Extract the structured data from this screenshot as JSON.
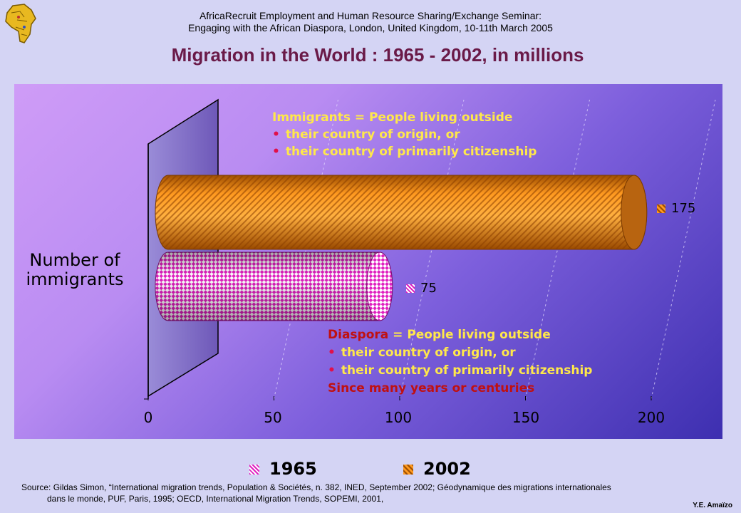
{
  "header": {
    "line1": "AfricaRecruit Employment and Human Resource Sharing/Exchange Seminar:",
    "line2": "Engaging with the African Diaspora, London, United Kingdom, 10-11th March 2005"
  },
  "colors": {
    "title": "#6a1a48",
    "series_1965": "#e020c0",
    "series_2002": "#ff8c1a",
    "note_text": "#ffe84a",
    "diaspora_word": "#c01010",
    "bullet": "#e0104a"
  },
  "chart_data": {
    "type": "bar",
    "orientation": "horizontal",
    "title": "Migration in the World : 1965 - 2002, in millions",
    "ylabel": "Number of immigrants",
    "xlabel": "",
    "xlim": [
      0,
      200
    ],
    "x_ticks": [
      "0",
      "50",
      "100",
      "150",
      "200"
    ],
    "grid": true,
    "legend_position": "bottom",
    "series": [
      {
        "name": "1965",
        "values": [
          75
        ],
        "label": "75"
      },
      {
        "name": "2002",
        "values": [
          175
        ],
        "label": "175"
      }
    ]
  },
  "annotations": {
    "immigrants": {
      "heading": "Immigrants = People living outside",
      "bullets": [
        "their country of origin, or",
        "their country of primarily citizenship"
      ]
    },
    "diaspora": {
      "word": "Diaspora",
      "heading_rest": " = People living outside",
      "bullets": [
        "their country of origin, or",
        "their country of primarily citizenship"
      ],
      "footer": "Since many years or centuries"
    }
  },
  "source": {
    "line1": "Source: Gildas Simon, “International migration trends, Population & Sociétés, n. 382, INED, September 2002; Géodynamique des migrations internationales",
    "line2": "dans le monde, PUF, Paris, 1995;  OECD, International Migration Trends, SOPEMI, 2001,"
  },
  "author": "Y.E. Amaïzo"
}
